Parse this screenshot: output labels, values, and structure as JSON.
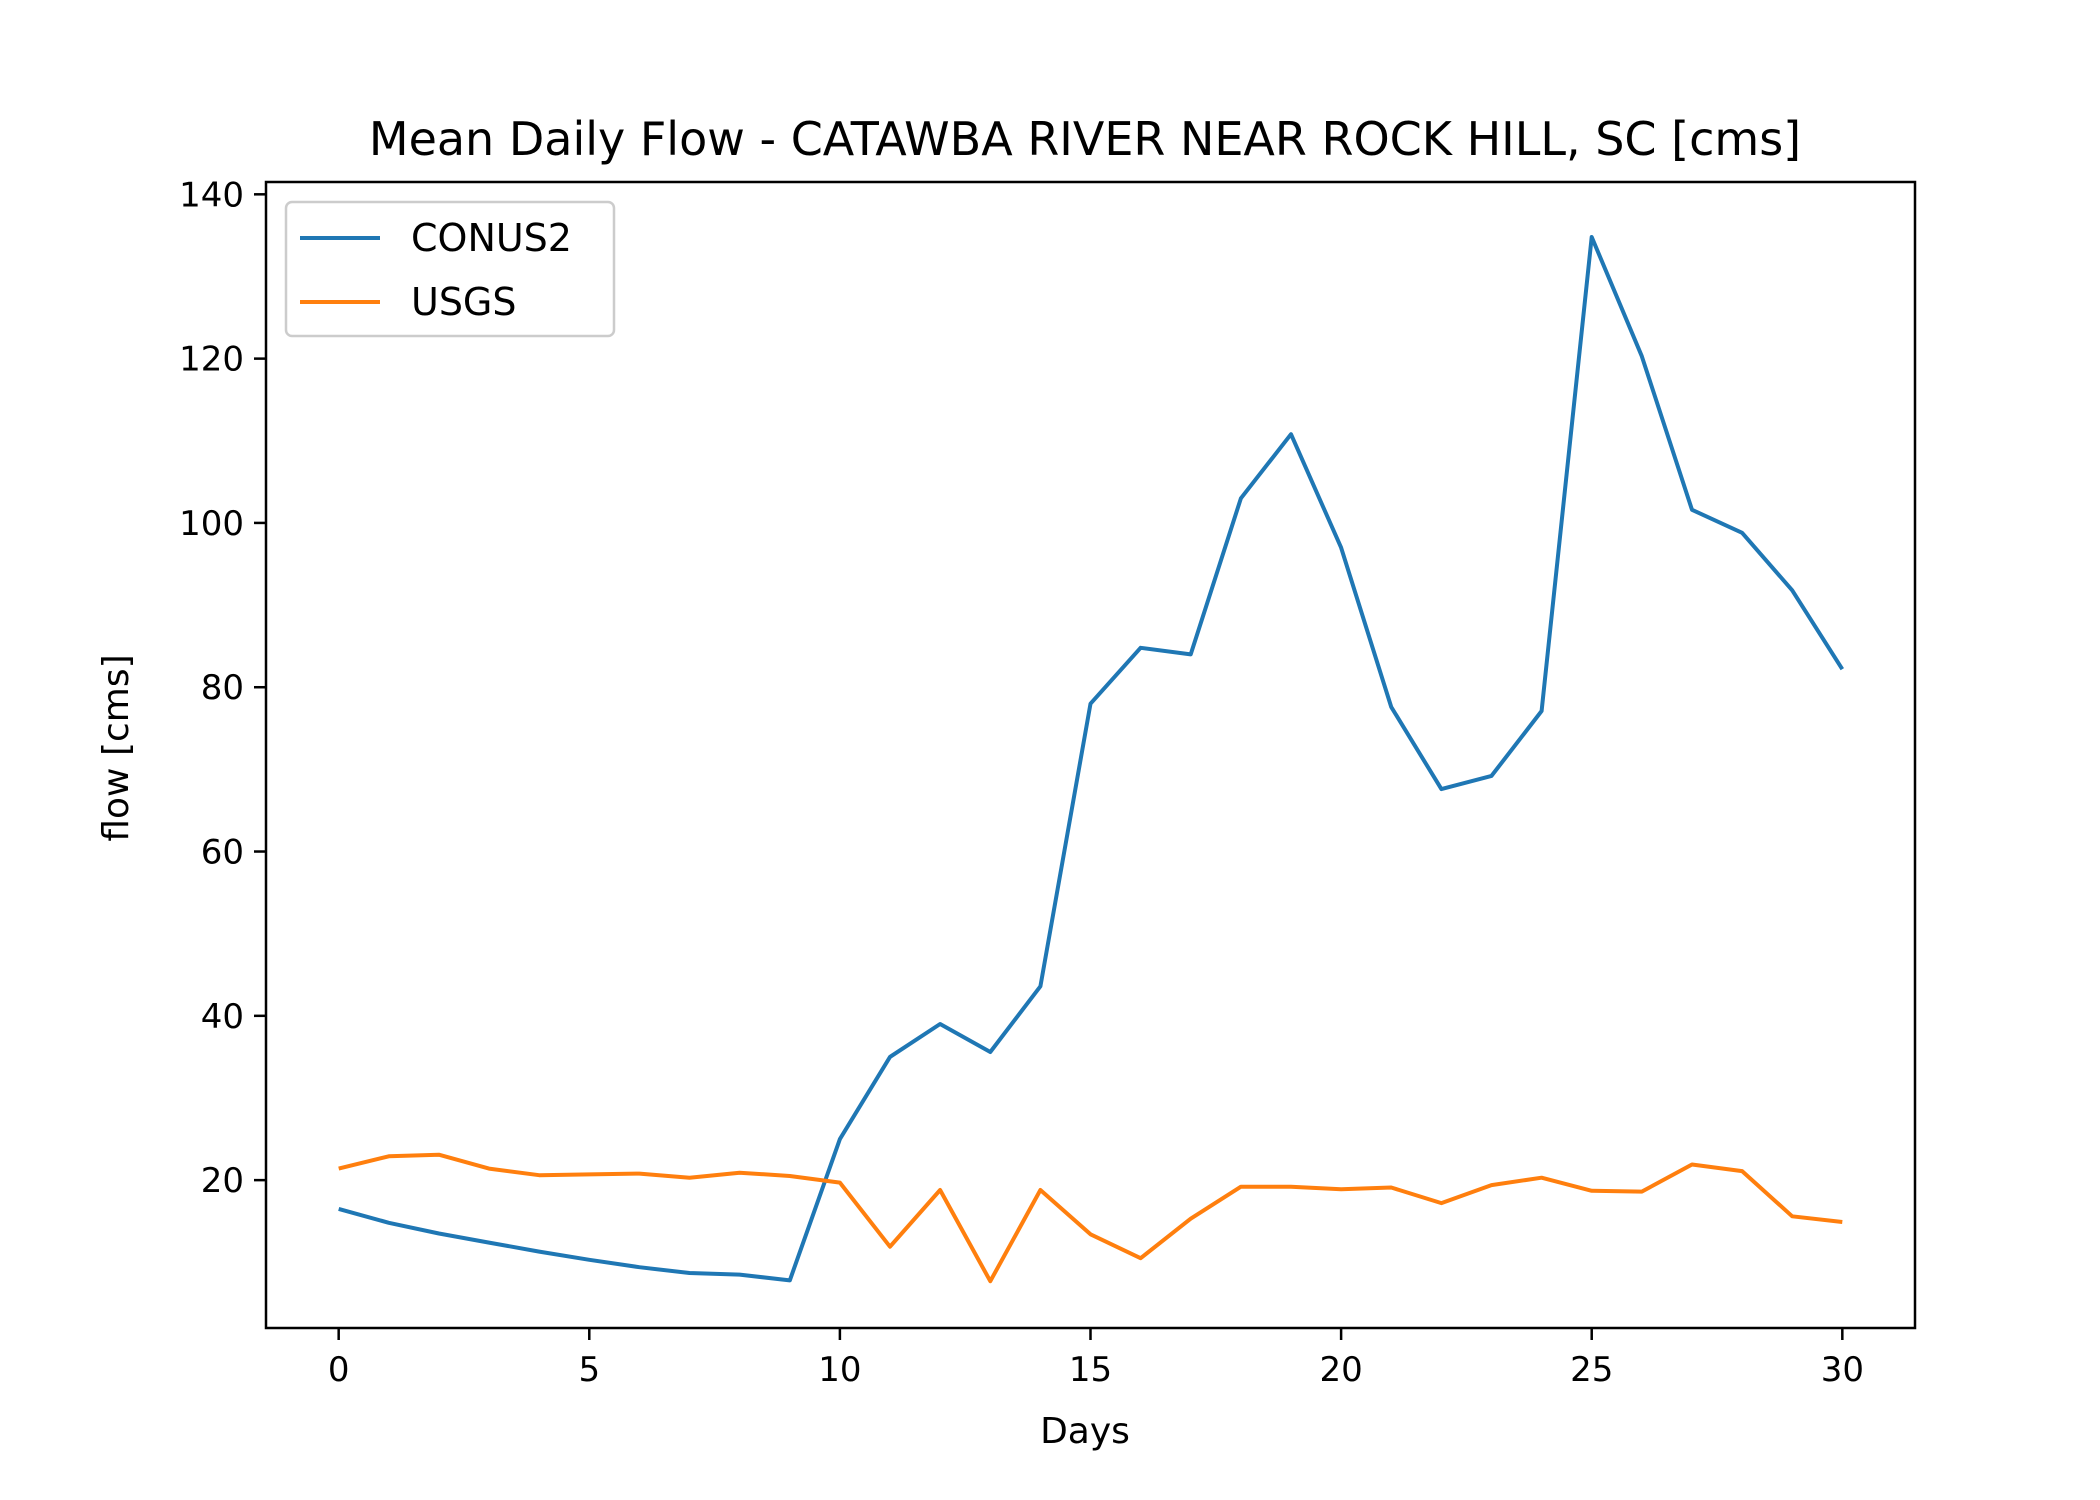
{
  "chart_data": {
    "type": "line",
    "title": "Mean Daily Flow - CATAWBA RIVER NEAR ROCK HILL, SC [cms]",
    "xlabel": "Days",
    "ylabel": "flow [cms]",
    "xlim": [
      -1.45,
      31.45
    ],
    "ylim": [
      2.0,
      141.5
    ],
    "xticks": [
      0,
      5,
      10,
      15,
      20,
      25,
      30
    ],
    "yticks": [
      20,
      40,
      60,
      80,
      100,
      120,
      140
    ],
    "grid": false,
    "legend_position": "upper left",
    "x": [
      0,
      1,
      2,
      3,
      4,
      5,
      6,
      7,
      8,
      9,
      10,
      11,
      12,
      13,
      14,
      15,
      16,
      17,
      18,
      19,
      20,
      21,
      22,
      23,
      24,
      25,
      26,
      27,
      28,
      29,
      30
    ],
    "series": [
      {
        "name": "CONUS2",
        "color": "#1f77b4",
        "values": [
          16.5,
          14.8,
          13.5,
          12.4,
          11.3,
          10.3,
          9.4,
          8.7,
          8.5,
          7.8,
          25.0,
          35.0,
          39.0,
          35.6,
          43.6,
          78.0,
          84.8,
          84.0,
          103.0,
          110.8,
          97.0,
          77.6,
          67.6,
          69.2,
          77.1,
          134.8,
          120.3,
          101.6,
          98.8,
          91.8,
          82.2
        ]
      },
      {
        "name": "USGS",
        "color": "#ff7f0e",
        "values": [
          21.4,
          22.9,
          23.1,
          21.4,
          20.6,
          20.7,
          20.8,
          20.3,
          20.9,
          20.5,
          19.7,
          11.9,
          18.8,
          7.7,
          18.8,
          13.4,
          10.5,
          15.3,
          19.2,
          19.2,
          18.9,
          19.1,
          17.2,
          19.4,
          20.3,
          18.7,
          18.6,
          21.9,
          21.1,
          15.6,
          14.9
        ]
      }
    ]
  }
}
